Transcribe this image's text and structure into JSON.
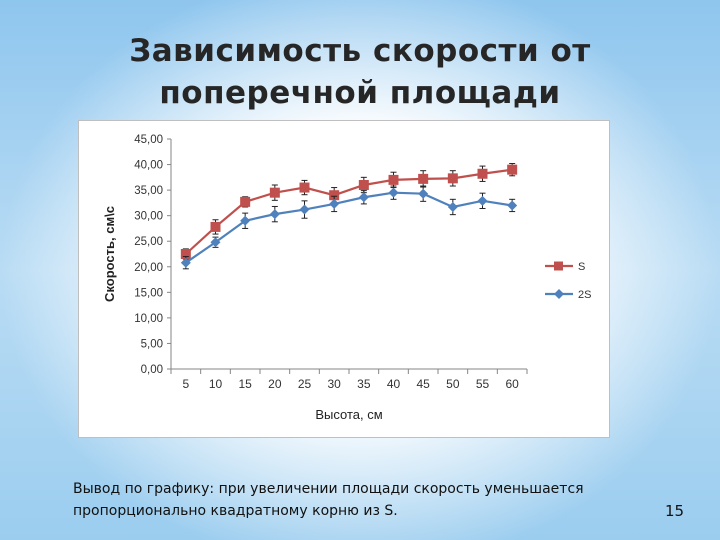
{
  "slide": {
    "title_line1": "Зависимость скорости от",
    "title_line2": "поперечной площади",
    "conclusion_line1": "Вывод по графику: при увеличении площади скорость уменьшается",
    "conclusion_line2": "пропорционально квадратному корню из S.",
    "page_number": "15"
  },
  "chart_data": {
    "type": "line",
    "xlabel": "Высота, см",
    "ylabel": "Скорость, см\\с",
    "categories": [
      "5",
      "10",
      "15",
      "20",
      "25",
      "30",
      "35",
      "40",
      "45",
      "50",
      "55",
      "60"
    ],
    "ylim": [
      0,
      45
    ],
    "yticks": [
      "0,00",
      "5,00",
      "10,00",
      "15,00",
      "20,00",
      "25,00",
      "30,00",
      "35,00",
      "40,00",
      "45,00"
    ],
    "grid": false,
    "legend": "right",
    "error_bars": true,
    "series": [
      {
        "name": "S",
        "color": "#c0504d",
        "marker": "square",
        "values": [
          22.5,
          27.8,
          32.7,
          34.5,
          35.5,
          34.0,
          36.0,
          37.0,
          37.2,
          37.3,
          38.2,
          39.0
        ],
        "errors": [
          1.0,
          1.4,
          1.0,
          1.5,
          1.4,
          1.5,
          1.5,
          1.5,
          1.6,
          1.5,
          1.5,
          1.2
        ]
      },
      {
        "name": "2S",
        "color": "#4f81bd",
        "marker": "diamond",
        "values": [
          20.8,
          24.8,
          29.0,
          30.3,
          31.2,
          32.3,
          33.6,
          34.5,
          34.3,
          31.7,
          32.9,
          32.0
        ],
        "errors": [
          1.2,
          1.0,
          1.5,
          1.5,
          1.7,
          1.5,
          1.3,
          1.3,
          1.5,
          1.5,
          1.5,
          1.2
        ]
      }
    ]
  }
}
